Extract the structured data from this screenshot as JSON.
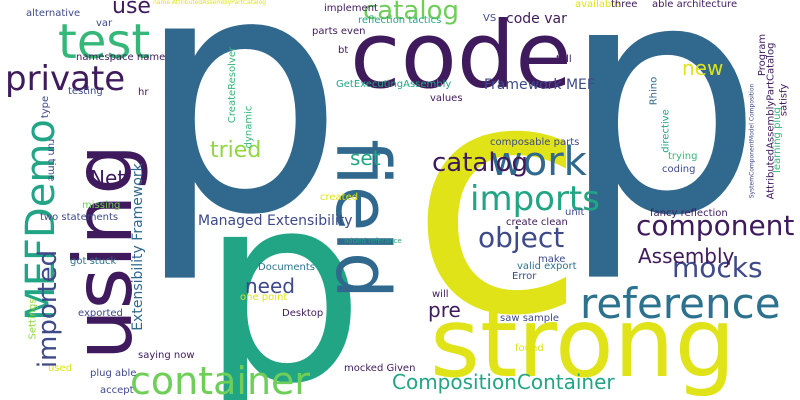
{
  "words": [
    {
      "text": "p",
      "color": "#30698d"
    },
    {
      "text": "p",
      "color": "#30698d"
    },
    {
      "text": "c",
      "color": "#dfe318"
    },
    {
      "text": "p",
      "color": "#21a585"
    },
    {
      "text": "code",
      "color": "#3f1a5c"
    },
    {
      "text": "strong",
      "color": "#dfe318"
    },
    {
      "text": "using",
      "color": "#3f1a5c"
    },
    {
      "text": "field",
      "color": "#30698d"
    },
    {
      "text": "test",
      "color": "#35b779"
    },
    {
      "text": "private",
      "color": "#3f1a5c"
    },
    {
      "text": "MEFDemo",
      "color": "#21a585"
    },
    {
      "text": "container",
      "color": "#6ece58"
    },
    {
      "text": "reference",
      "color": "#2c728e"
    },
    {
      "text": "imported",
      "color": "#3e4a89"
    },
    {
      "text": "work",
      "color": "#30698d"
    },
    {
      "text": "imports",
      "color": "#21a585"
    },
    {
      "text": "object",
      "color": "#3e4a89"
    },
    {
      "text": "component",
      "color": "#3f1a5c"
    },
    {
      "text": "catalog",
      "color": "#6ece58"
    },
    {
      "text": "catalog",
      "color": "#3f1a5c"
    },
    {
      "text": "mocks",
      "color": "#3e4a89"
    },
    {
      "text": "Assembly",
      "color": "#3f1a5c"
    },
    {
      "text": "CompositionContainer",
      "color": "#21a585"
    },
    {
      "text": "new",
      "color": "#dfe318"
    },
    {
      "text": "use",
      "color": "#3f1a5c"
    },
    {
      "text": "tried",
      "color": "#90d743"
    },
    {
      "text": "Net",
      "color": "#3f1a5c"
    },
    {
      "text": "need",
      "color": "#3e4a89"
    },
    {
      "text": "pre",
      "color": "#3f1a5c"
    },
    {
      "text": "set",
      "color": "#21a585"
    },
    {
      "text": "Managed Extensibility",
      "color": "#3e4a89"
    },
    {
      "text": "Extensibility Framework",
      "color": "#30698d"
    },
    {
      "text": "Framework MEF",
      "color": "#3e4a89"
    },
    {
      "text": "code var",
      "color": "#3f1a5c"
    },
    {
      "text": "alternative",
      "color": "#3e4a89"
    },
    {
      "text": "var",
      "color": "#3e4a89"
    },
    {
      "text": "namespace name",
      "color": "#3f1a5c"
    },
    {
      "text": "testing",
      "color": "#3e4a89"
    },
    {
      "text": "type",
      "color": "#3e4a89"
    },
    {
      "text": "run time",
      "color": "#3e4a89"
    },
    {
      "text": "hr",
      "color": "#3f1a5c"
    },
    {
      "text": "two statements",
      "color": "#3e4a89"
    },
    {
      "text": "missing",
      "color": "#6ece58"
    },
    {
      "text": "got stuck",
      "color": "#2c728e"
    },
    {
      "text": "Settings",
      "color": "#90d743"
    },
    {
      "text": "exported",
      "color": "#3e4a89"
    },
    {
      "text": "used",
      "color": "#dfe318"
    },
    {
      "text": "accept",
      "color": "#3e4a89"
    },
    {
      "text": "plug able",
      "color": "#3e4a89"
    },
    {
      "text": "saying now",
      "color": "#3f1a5c"
    },
    {
      "text": "implement",
      "color": "#3f1a5c"
    },
    {
      "text": "reflection tactics",
      "color": "#21a585"
    },
    {
      "text": "parts even",
      "color": "#3f1a5c"
    },
    {
      "text": "bt",
      "color": "#3f1a5c"
    },
    {
      "text": "GetExecutingAssembly",
      "color": "#21a585"
    },
    {
      "text": "values",
      "color": "#3f1a5c"
    },
    {
      "text": "VS",
      "color": "#3e4a89"
    },
    {
      "text": "available",
      "color": "#dfe318"
    },
    {
      "text": "three",
      "color": "#3f1a5c"
    },
    {
      "text": "able architecture",
      "color": "#3f1a5c"
    },
    {
      "text": "tell",
      "color": "#3f1a5c"
    },
    {
      "text": "Rhino",
      "color": "#30698d"
    },
    {
      "text": "directive",
      "color": "#21a585"
    },
    {
      "text": "Program",
      "color": "#3f1a5c"
    },
    {
      "text": "AttributedAssemblyPartCatalog",
      "color": "#3f1a5c"
    },
    {
      "text": "SystemComponentModel Composition",
      "color": "#3e4a89"
    },
    {
      "text": "satisfy",
      "color": "#3f1a5c"
    },
    {
      "text": "learning plug",
      "color": "#35b779"
    },
    {
      "text": "trying",
      "color": "#35b779"
    },
    {
      "text": "coding",
      "color": "#3e4a89"
    },
    {
      "text": "composable parts",
      "color": "#3e4a89"
    },
    {
      "text": "fancy reflection",
      "color": "#3f1a5c"
    },
    {
      "text": "unit",
      "color": "#3e4a89"
    },
    {
      "text": "create clean",
      "color": "#3f1a5c"
    },
    {
      "text": "valid export",
      "color": "#2c728e"
    },
    {
      "text": "make",
      "color": "#3e4a89"
    },
    {
      "text": "Error",
      "color": "#3e4a89"
    },
    {
      "text": "added referance",
      "color": "#21a585"
    },
    {
      "text": "Documents",
      "color": "#2c728e"
    },
    {
      "text": "one point",
      "color": "#dfe318"
    },
    {
      "text": "Desktop",
      "color": "#3f1a5c"
    },
    {
      "text": "created",
      "color": "#dfe318"
    },
    {
      "text": "dynamic",
      "color": "#35b779"
    },
    {
      "text": "CreateResolver",
      "color": "#35b779"
    },
    {
      "text": "will",
      "color": "#3f1a5c"
    },
    {
      "text": "saw sample",
      "color": "#3e4a89"
    },
    {
      "text": "found",
      "color": "#dfe318"
    },
    {
      "text": "mocked Given",
      "color": "#3f1a5c"
    },
    {
      "text": "name AttributedAssemblyPartCatalog",
      "color": "#dfe318"
    }
  ]
}
